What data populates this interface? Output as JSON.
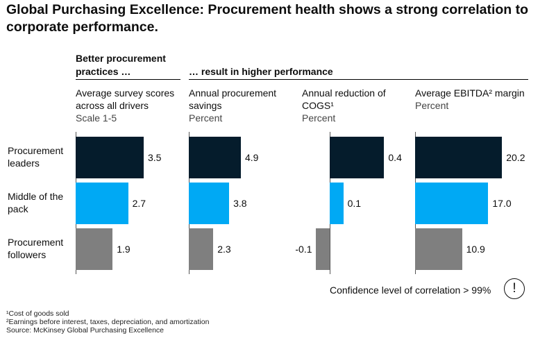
{
  "title": "Global Purchasing Excellence: Procurement health shows a strong correlation to corporate performance.",
  "groups": {
    "left": "Better procurement practices …",
    "right": "… result in higher performance"
  },
  "chart_data": {
    "type": "bar",
    "orientation": "horizontal",
    "categories": [
      "Procurement leaders",
      "Middle of the pack",
      "Procurement followers"
    ],
    "colors": {
      "Procurement leaders": "#051c2c",
      "Middle of the pack": "#00a9f4",
      "Procurement followers": "#7f7f7f"
    },
    "panels": [
      {
        "title": "Average survey scores across all drivers",
        "unit": "Scale 1-5",
        "values": [
          3.5,
          2.7,
          1.9
        ],
        "labels": [
          "3.5",
          "2.7",
          "1.9"
        ]
      },
      {
        "title": "Annual procurement savings",
        "unit": "Percent",
        "values": [
          4.9,
          3.8,
          2.3
        ],
        "labels": [
          "4.9",
          "3.8",
          "2.3"
        ]
      },
      {
        "title": "Annual reduction of COGS¹",
        "unit": "Percent",
        "values": [
          0.4,
          0.1,
          -0.1
        ],
        "labels": [
          "0.4",
          "0.1",
          "-0.1"
        ]
      },
      {
        "title": "Average EBITDA² margin",
        "unit": "Percent",
        "values": [
          20.2,
          17.0,
          10.9
        ],
        "labels": [
          "20.2",
          "17.0",
          "10.9"
        ]
      }
    ]
  },
  "confidence": {
    "text": "Confidence level of correlation > 99%",
    "icon": "exclamation-icon",
    "glyph": "!"
  },
  "footnotes": [
    "¹Cost of goods sold",
    "²Earnings before interest, taxes, depreciation, and amortization",
    " Source: McKinsey Global Purchasing Excellence"
  ]
}
